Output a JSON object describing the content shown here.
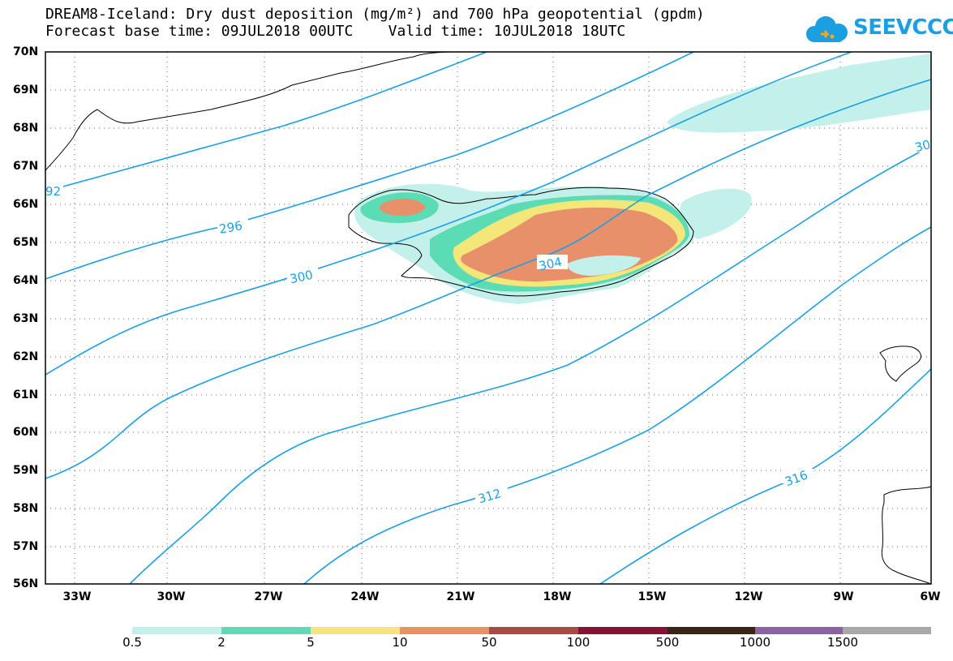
{
  "header": {
    "title_line1": "DREAM8-Iceland: Dry dust deposition (mg/m²) and 700 hPa geopotential (gpdm)",
    "title_line2": "Forecast base time: 09JUL2018 00UTC    Valid time: 10JUL2018 18UTC"
  },
  "logo": {
    "text": "SEEVCCC",
    "icon": "cloud-icon",
    "color": "#1aa0e0"
  },
  "map": {
    "lat_labels": [
      "70N",
      "69N",
      "68N",
      "67N",
      "66N",
      "65N",
      "64N",
      "63N",
      "62N",
      "61N",
      "60N",
      "59N",
      "58N",
      "57N",
      "56N"
    ],
    "lon_labels": [
      "33W",
      "30W",
      "27W",
      "24W",
      "21W",
      "18W",
      "15W",
      "12W",
      "9W",
      "6W"
    ],
    "contour_color": "#1ba0e6",
    "contour_labels": [
      "92",
      "296",
      "300",
      "304",
      "312",
      "316",
      "30"
    ]
  },
  "colorbar": {
    "colors": [
      "#c3f0ea",
      "#5cdcb4",
      "#f5e67a",
      "#e8906a",
      "#a84a48",
      "#8a1036",
      "#3a2418",
      "#8a64a0",
      "#a8a8a8"
    ],
    "labels": [
      "0.5",
      "2",
      "5",
      "10",
      "50",
      "100",
      "500",
      "1000",
      "1500"
    ]
  }
}
